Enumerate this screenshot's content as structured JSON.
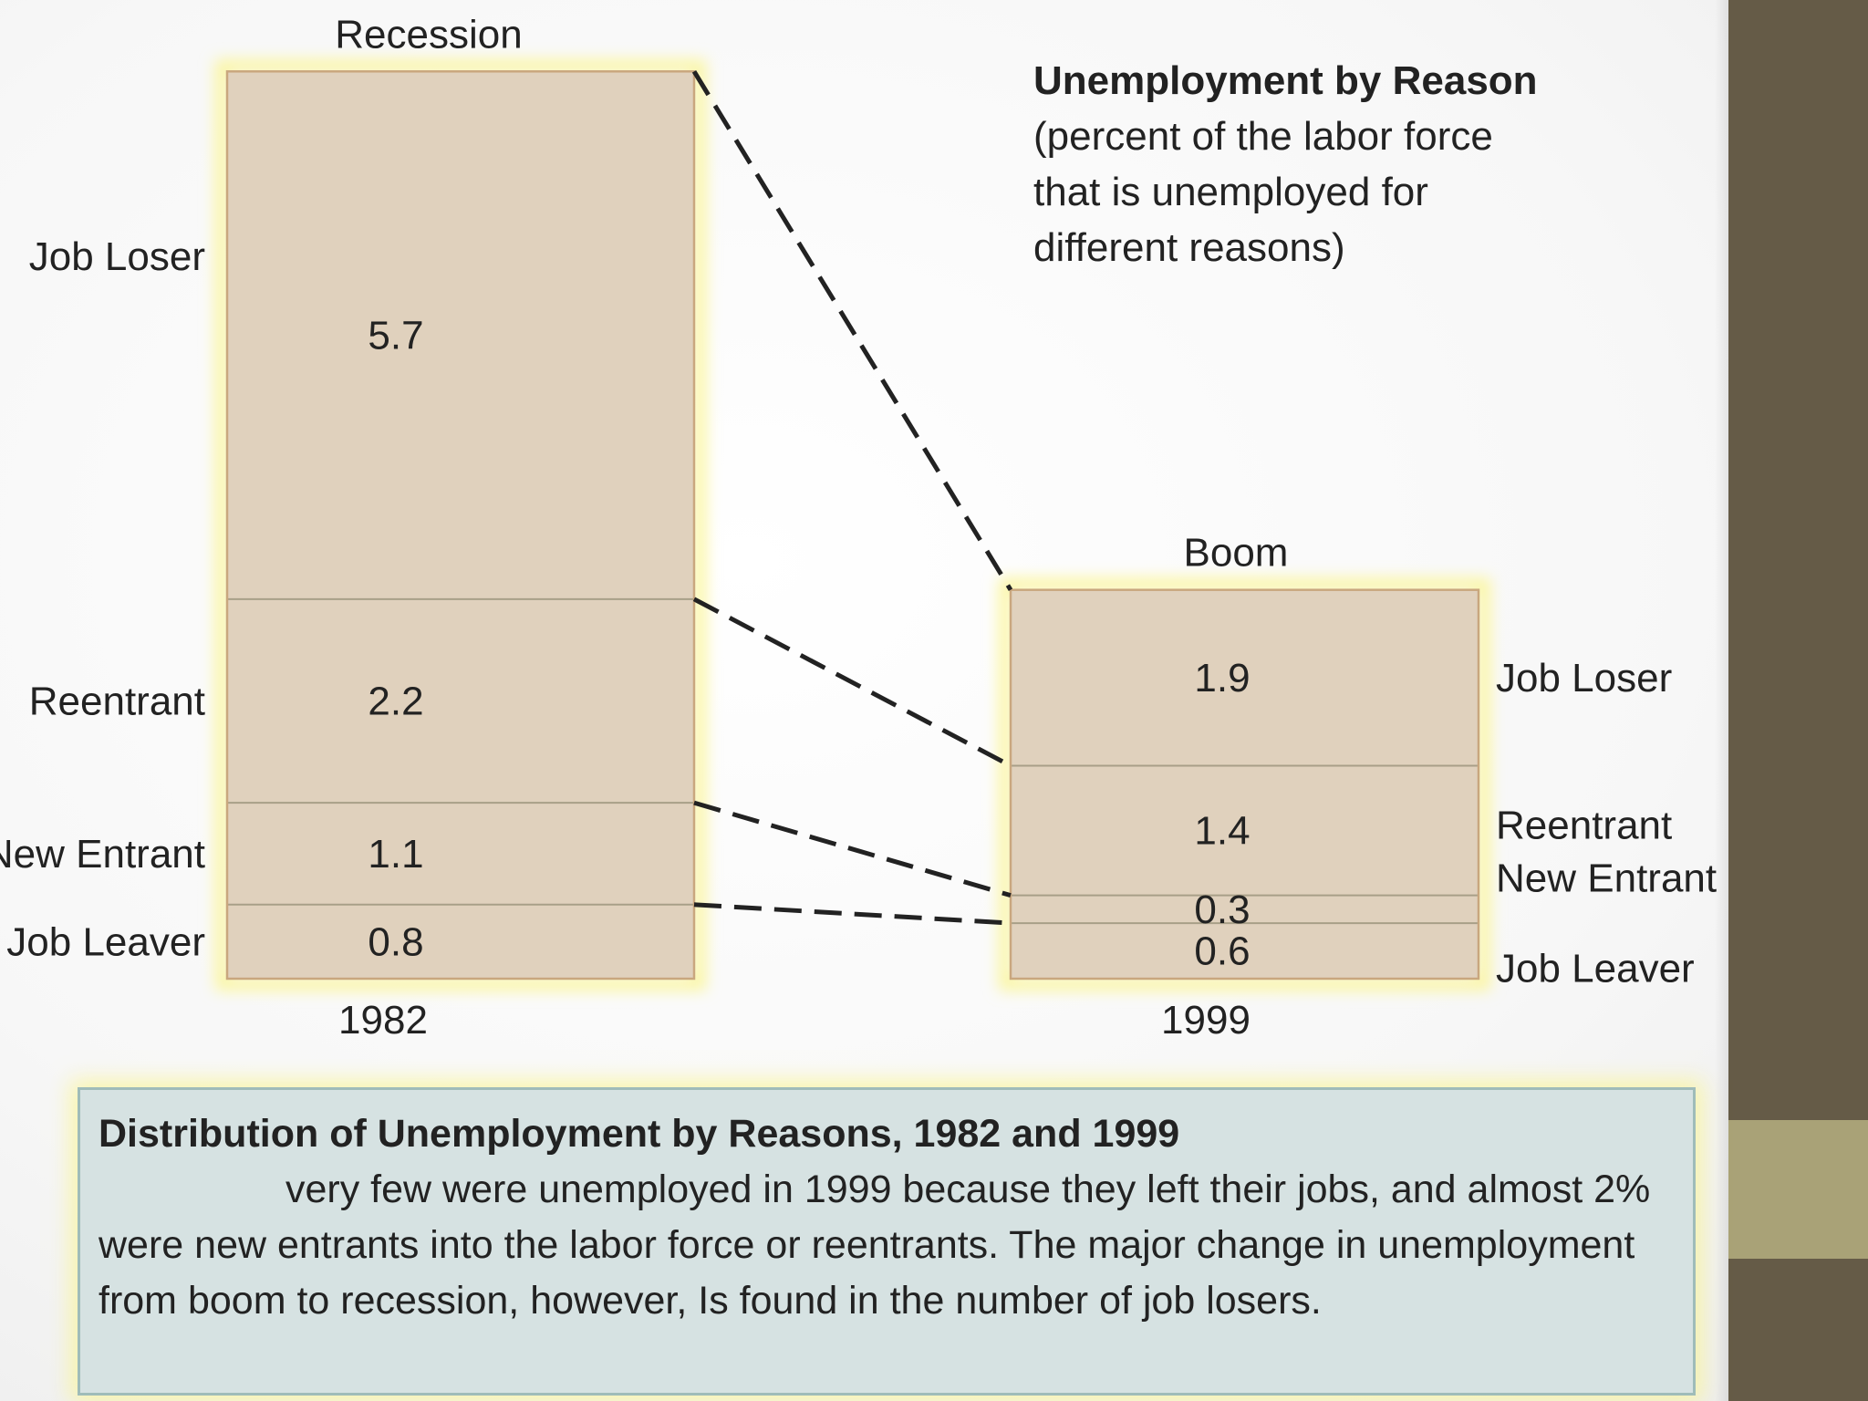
{
  "chart_data": {
    "type": "bar",
    "subtype": "stacked",
    "title": "Unemployment by Reason",
    "subtitle": "(percent of the labor force that is unemployed for different reasons)",
    "categories": [
      "1982",
      "1999"
    ],
    "category_titles": [
      "Recession",
      "Boom"
    ],
    "series": [
      {
        "name": "Job Loser",
        "values": [
          5.7,
          1.9
        ]
      },
      {
        "name": "Reentrant",
        "values": [
          2.2,
          1.4
        ]
      },
      {
        "name": "New Entrant",
        "values": [
          1.1,
          0.3
        ]
      },
      {
        "name": "Job Leaver",
        "values": [
          0.8,
          0.6
        ]
      }
    ],
    "data_labels": [
      [
        "5.7",
        "1.9"
      ],
      [
        "2.2",
        "1.4"
      ],
      [
        "1.1",
        "0.3"
      ],
      [
        "0.8",
        "0.6"
      ]
    ],
    "stack_order": "Job Leaver at bottom, Job Loser at top",
    "legend": "segment labels beside each bar",
    "grid": false
  },
  "caption": {
    "title": "Distribution of Unemployment by Reasons, 1982 and 1999",
    "body": "very few were unemployed in 1999 because they left their jobs, and almost 2% were new entrants into the labor force or reentrants. The major change in unemployment from boom to recession, however, Is found in the number of job losers."
  },
  "colors": {
    "bar_fill": "#e0d1bd",
    "bar_border": "#c9a77e",
    "segment_divider": "#a89f88",
    "bar_glow": "#fbf6a0",
    "connector": "#222222",
    "sidebar": "#655b47",
    "sidebar_accent": "#a9a277",
    "caption_fill": "#d6e2e2",
    "caption_border": "#9fbcb9"
  }
}
